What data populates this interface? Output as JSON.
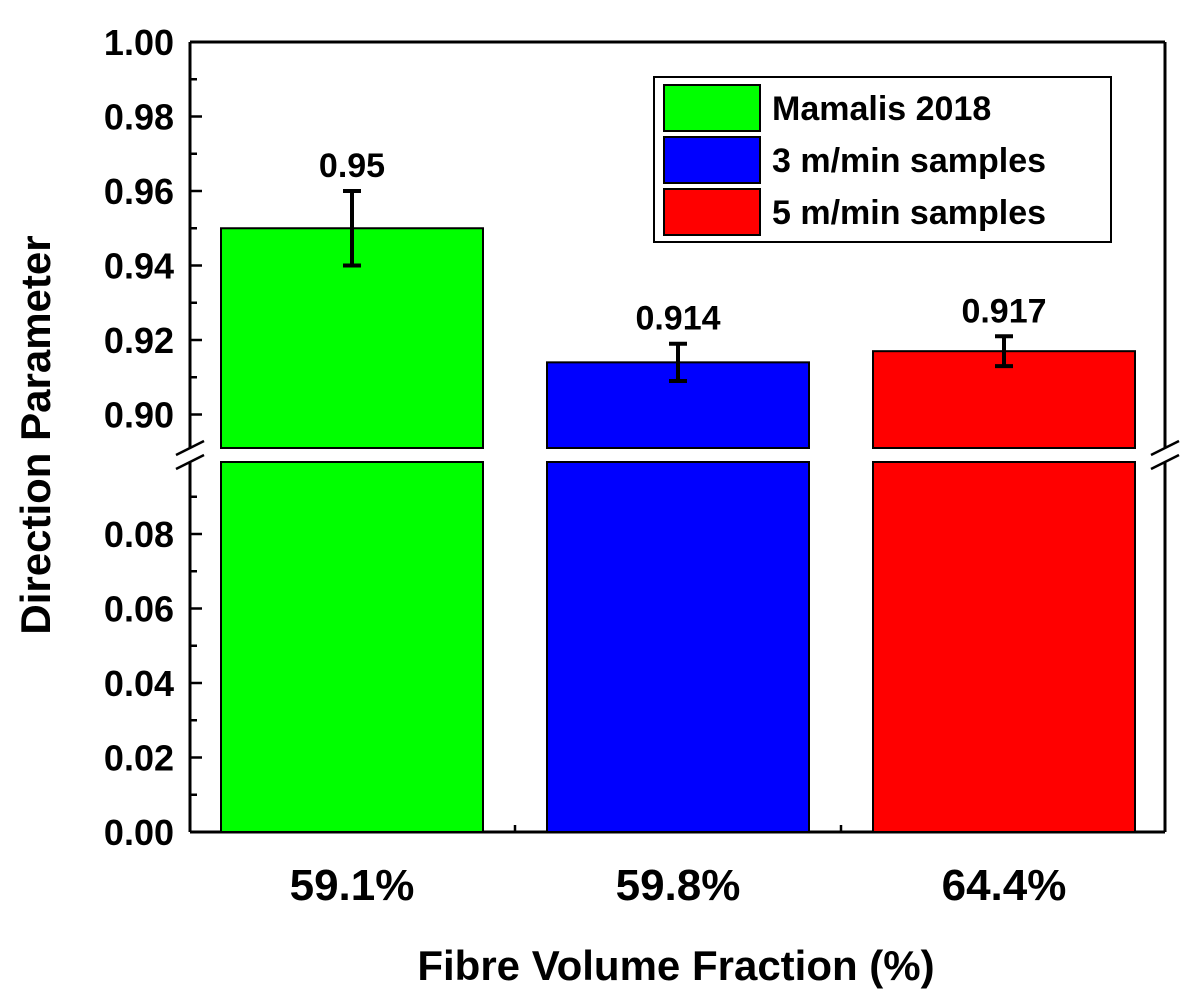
{
  "chart_data": {
    "type": "bar",
    "title": "",
    "xlabel": "Fibre Volume Fraction (%)",
    "ylabel": "Direction Parameter",
    "categories": [
      "59.1%",
      "59.8%",
      "64.4%"
    ],
    "series": [
      {
        "name": "Mamalis 2018",
        "color": "#00ff00",
        "category": "59.1%",
        "value": 0.95,
        "error": 0.01,
        "label": "0.95"
      },
      {
        "name": "3 m/min samples",
        "color": "#0000ff",
        "category": "59.8%",
        "value": 0.914,
        "error": 0.005,
        "label": "0.914"
      },
      {
        "name": "5 m/min samples",
        "color": "#ff0000",
        "category": "64.4%",
        "value": 0.917,
        "error": 0.004,
        "label": "0.917"
      }
    ],
    "axis_break": true,
    "lower_segment": {
      "ylim": [
        0.0,
        0.1
      ],
      "ticks": [
        "0.00",
        "0.02",
        "0.04",
        "0.06",
        "0.08"
      ]
    },
    "upper_segment": {
      "ylim": [
        0.89,
        1.0
      ],
      "ticks": [
        "0.90",
        "0.92",
        "0.94",
        "0.96",
        "0.98",
        "1.00"
      ]
    },
    "legend_position": "top-right",
    "grid": false
  }
}
